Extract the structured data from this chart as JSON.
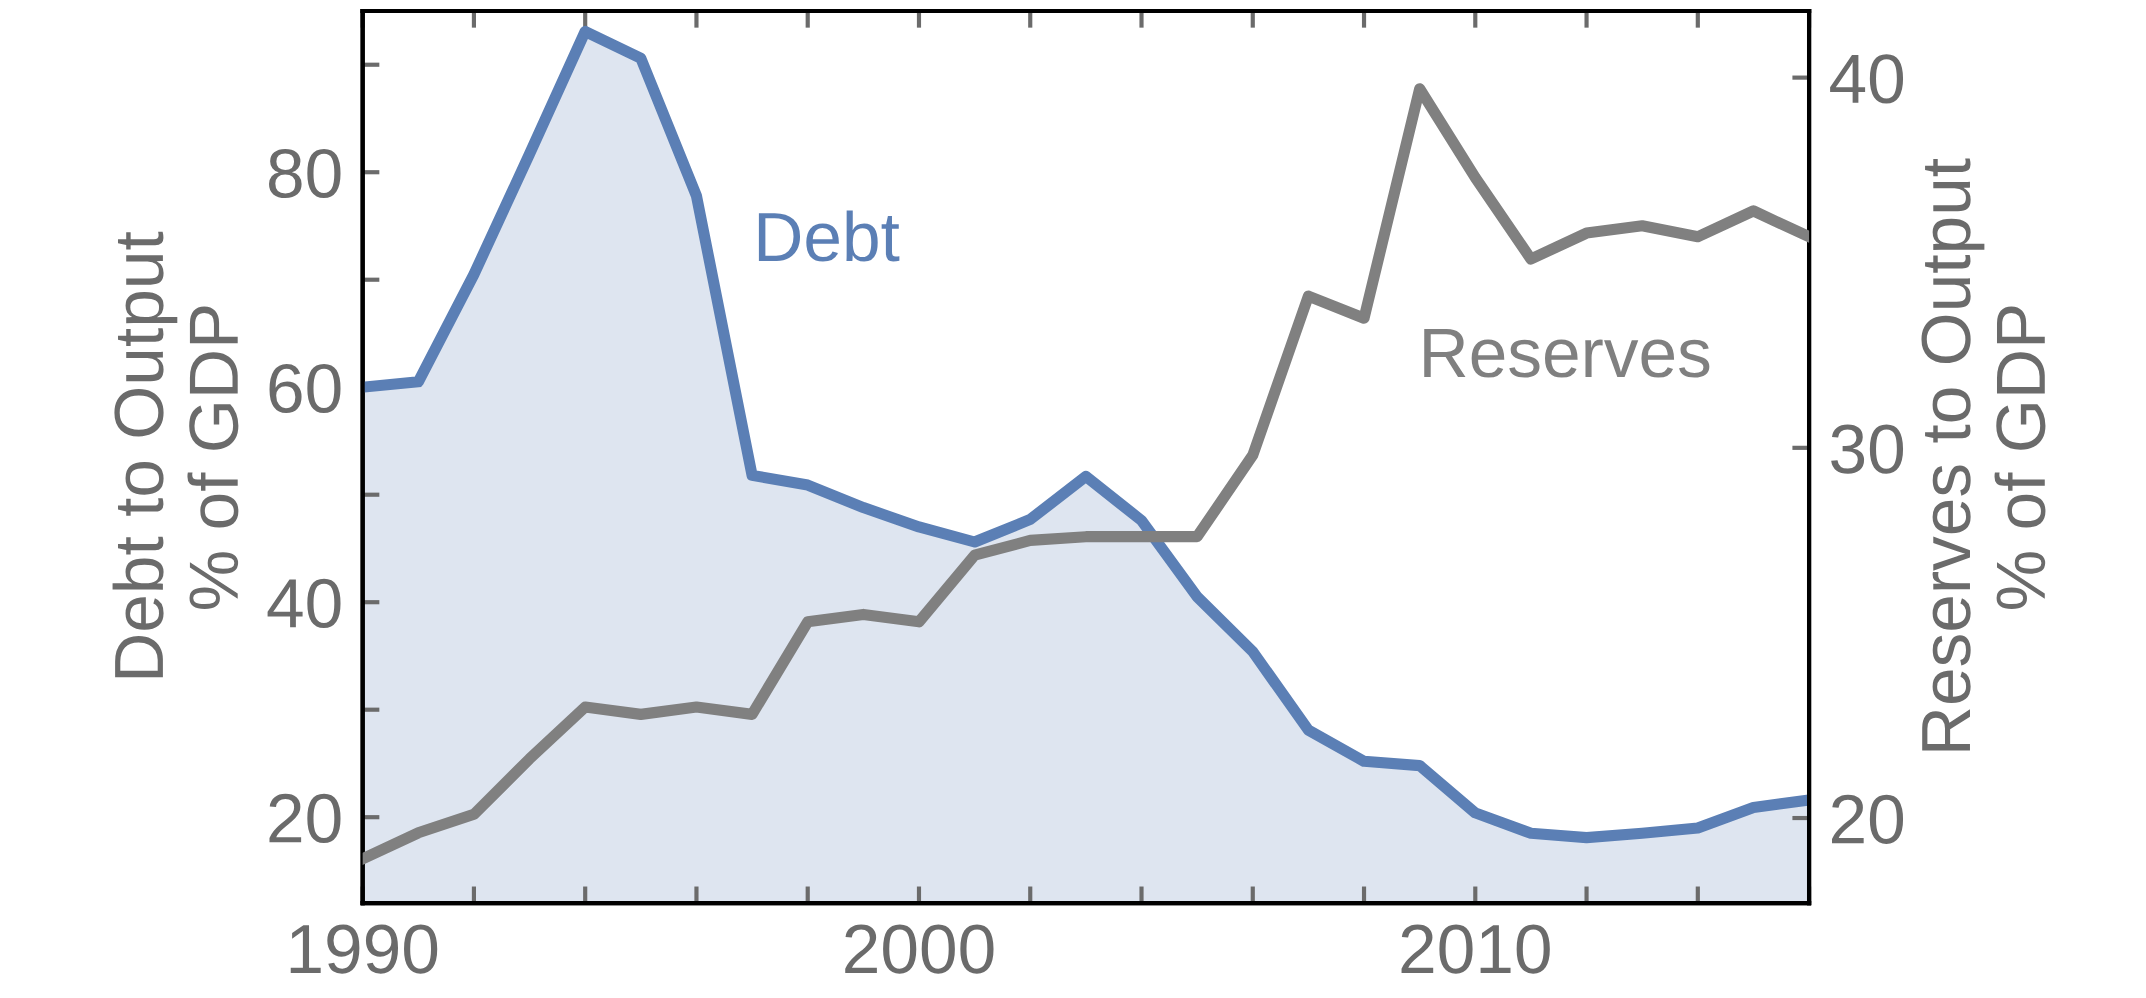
{
  "chart_data": {
    "type": "line",
    "ylabel": "Debt to Output\n% of GDP",
    "y2label": "Reserves to Output\n% of GDP",
    "x": [
      1990,
      1991,
      1992,
      1993,
      1994,
      1995,
      1996,
      1997,
      1998,
      1999,
      2000,
      2001,
      2002,
      2003,
      2004,
      2005,
      2006,
      2007,
      2008,
      2009,
      2010,
      2011,
      2012,
      2013,
      2014,
      2015,
      2016
    ],
    "series": [
      {
        "name": "Debt",
        "type": "area",
        "color": "#5b7fb5",
        "values": [
          60.0,
          60.5,
          70.5,
          81.7,
          93.1,
          90.6,
          77.8,
          51.8,
          50.9,
          48.8,
          47.0,
          45.6,
          47.7,
          51.7,
          47.6,
          40.5,
          35.4,
          28.1,
          25.2,
          24.8,
          20.4,
          18.5,
          18.1,
          18.5,
          19.0,
          20.9,
          21.6
        ]
      },
      {
        "name": "Reserves",
        "axis": "y2",
        "color": "#808080",
        "values": [
          18.9,
          19.6,
          20.1,
          21.6,
          23.0,
          22.8,
          23.0,
          22.8,
          25.3,
          25.5,
          25.3,
          27.1,
          27.5,
          27.6,
          27.6,
          27.6,
          29.8,
          34.1,
          33.5,
          39.7,
          37.3,
          35.1,
          35.8,
          36.0,
          35.7,
          36.4,
          35.7
        ]
      }
    ],
    "xlim": [
      1990,
      2016
    ],
    "xticks": [
      1990,
      2000,
      2010
    ],
    "ylim": [
      12,
      95
    ],
    "yticks": [
      20,
      40,
      60,
      80
    ],
    "y2lim": [
      17.7,
      41.8
    ],
    "y2ticks": [
      20,
      30,
      40
    ],
    "grid": false,
    "legend": false,
    "line_style": "solid",
    "marker": "none"
  }
}
